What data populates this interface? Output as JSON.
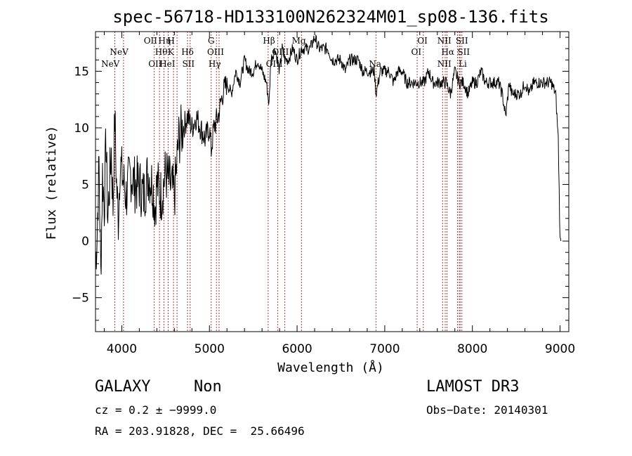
{
  "chart_data": {
    "type": "line",
    "title": "spec-56718-HD133100N262324M01_sp08-136.fits",
    "xlabel": "Wavelength (Å)",
    "ylabel": "Flux (relative)",
    "xlim": [
      3700,
      9100
    ],
    "ylim": [
      -8,
      18.5
    ],
    "xticks": [
      "4000",
      "5000",
      "6000",
      "7000",
      "8000",
      "9000"
    ],
    "xtick_values": [
      4000,
      5000,
      6000,
      7000,
      8000,
      9000
    ],
    "yticks": [
      "−5",
      "0",
      "5",
      "10",
      "15"
    ],
    "ytick_values": [
      -5,
      0,
      5,
      10,
      15
    ],
    "series": [
      {
        "name": "flux",
        "x": [
          3700,
          3720,
          3740,
          3760,
          3780,
          3800,
          3820,
          3840,
          3860,
          3880,
          3900,
          3920,
          3940,
          3960,
          3980,
          4000,
          4050,
          4100,
          4150,
          4200,
          4250,
          4300,
          4350,
          4380,
          4400,
          4450,
          4500,
          4550,
          4600,
          4620,
          4650,
          4700,
          4750,
          4800,
          4850,
          4900,
          4950,
          5000,
          5020,
          5050,
          5100,
          5150,
          5200,
          5250,
          5300,
          5350,
          5400,
          5450,
          5500,
          5550,
          5600,
          5650,
          5680,
          5700,
          5750,
          5800,
          5830,
          5860,
          5900,
          5950,
          6000,
          6050,
          6100,
          6150,
          6200,
          6250,
          6300,
          6350,
          6400,
          6450,
          6500,
          6550,
          6600,
          6650,
          6700,
          6750,
          6800,
          6850,
          6880,
          6900,
          6950,
          7000,
          7050,
          7100,
          7150,
          7200,
          7250,
          7300,
          7350,
          7400,
          7450,
          7500,
          7550,
          7600,
          7650,
          7700,
          7750,
          7800,
          7850,
          7900,
          7950,
          8000,
          8050,
          8100,
          8150,
          8200,
          8250,
          8300,
          8340,
          8380,
          8420,
          8450,
          8500,
          8550,
          8600,
          8650,
          8700,
          8750,
          8800,
          8850,
          8900,
          8950,
          8980,
          9000,
          9010
        ],
        "y": [
          -2,
          1,
          7,
          -3,
          6,
          3,
          9,
          2,
          5,
          8,
          3,
          11,
          5,
          2,
          7,
          6,
          4,
          6,
          5,
          5,
          4,
          6,
          5,
          3,
          5,
          4,
          6,
          5,
          4,
          6,
          9,
          10,
          11,
          10,
          11,
          10,
          9,
          10,
          8,
          10,
          11,
          13,
          14,
          13,
          15,
          14,
          16,
          15,
          15,
          16,
          15,
          14,
          12,
          16,
          17,
          15,
          17,
          16,
          16,
          17,
          16,
          17,
          17,
          17,
          18,
          17,
          17,
          17,
          16,
          16,
          16,
          15,
          16,
          16,
          16,
          15,
          15,
          15,
          15,
          13,
          15,
          15,
          15,
          14,
          15,
          15,
          14,
          14,
          14,
          14,
          14,
          15,
          14,
          14,
          14,
          14,
          13,
          15,
          14,
          14,
          13,
          14,
          14,
          15,
          14,
          14,
          14,
          14,
          13,
          11,
          14,
          13,
          13,
          13,
          14,
          13,
          14,
          14,
          14,
          14,
          14,
          13,
          9,
          0,
          0
        ]
      }
    ],
    "lines": [
      {
        "name": "NeV",
        "wavelength": 3870,
        "row": 2,
        "dx": 0
      },
      {
        "name": "NeV",
        "wavelength": 3970,
        "row": 1,
        "dx": 0
      },
      {
        "name": "OII",
        "wavelength": 4360,
        "row": 0,
        "dx": -4
      },
      {
        "name": "Hη",
        "wavelength": 4440,
        "row": 0,
        "dx": 6
      },
      {
        "name": "H",
        "wavelength": 4610,
        "row": 0,
        "dx": -6
      },
      {
        "name": "Hθ",
        "wavelength": 4450,
        "row": 1,
        "dx": 0
      },
      {
        "name": "K",
        "wavelength": 4560,
        "row": 1,
        "dx": 0
      },
      {
        "name": "Hδ",
        "wavelength": 4750,
        "row": 1,
        "dx": 0
      },
      {
        "name": "OII",
        "wavelength": 4380,
        "row": 2,
        "dx": 0
      },
      {
        "name": "HeI",
        "wavelength": 4520,
        "row": 2,
        "dx": 0
      },
      {
        "name": "SII",
        "wavelength": 4760,
        "row": 2,
        "dx": 0
      },
      {
        "name": "G",
        "wavelength": 5020,
        "row": 0,
        "dx": 0
      },
      {
        "name": "OIII",
        "wavelength": 5070,
        "row": 1,
        "dx": 0
      },
      {
        "name": "Hγ",
        "wavelength": 5060,
        "row": 2,
        "dx": 0
      },
      {
        "name": "Hβ",
        "wavelength": 5680,
        "row": 0,
        "dx": 0
      },
      {
        "name": "Mg",
        "wavelength": 6020,
        "row": 0,
        "dx": 0
      },
      {
        "name": "OIII",
        "wavelength": 5810,
        "row": 1,
        "dx": 0
      },
      {
        "name": "OIII",
        "wavelength": 5740,
        "row": 2,
        "dx": 0
      },
      {
        "name": "Na",
        "wavelength": 6890,
        "row": 2,
        "dx": 0
      },
      {
        "name": "OI",
        "wavelength": 7430,
        "row": 0,
        "dx": 0
      },
      {
        "name": "OI",
        "wavelength": 7360,
        "row": 1,
        "dx": 0
      },
      {
        "name": "NII",
        "wavelength": 7680,
        "row": 0,
        "dx": 0
      },
      {
        "name": "SII",
        "wavelength": 7880,
        "row": 0,
        "dx": 0
      },
      {
        "name": "Hα",
        "wavelength": 7720,
        "row": 1,
        "dx": 0
      },
      {
        "name": "SII",
        "wavelength": 7900,
        "row": 1,
        "dx": 0
      },
      {
        "name": "NII",
        "wavelength": 7680,
        "row": 2,
        "dx": 0
      },
      {
        "name": "Li",
        "wavelength": 7890,
        "row": 2,
        "dx": 0
      }
    ],
    "line_markers": [
      3920,
      4020,
      4370,
      4430,
      4480,
      4530,
      4590,
      4630,
      4750,
      4780,
      5020,
      5080,
      5110,
      5670,
      5780,
      5860,
      6050,
      6900,
      7370,
      7440,
      7660,
      7690,
      7710,
      7830,
      7850,
      7860,
      7880
    ]
  },
  "info": {
    "object_class": "GALAXY",
    "subclass": "Non",
    "survey": "LAMOST DR3",
    "redshift": "cz = 0.2 ± −9999.0",
    "obs_date": "Obs−Date: 20140301",
    "coords": "RA = 203.91828, DEC =  25.66496"
  }
}
